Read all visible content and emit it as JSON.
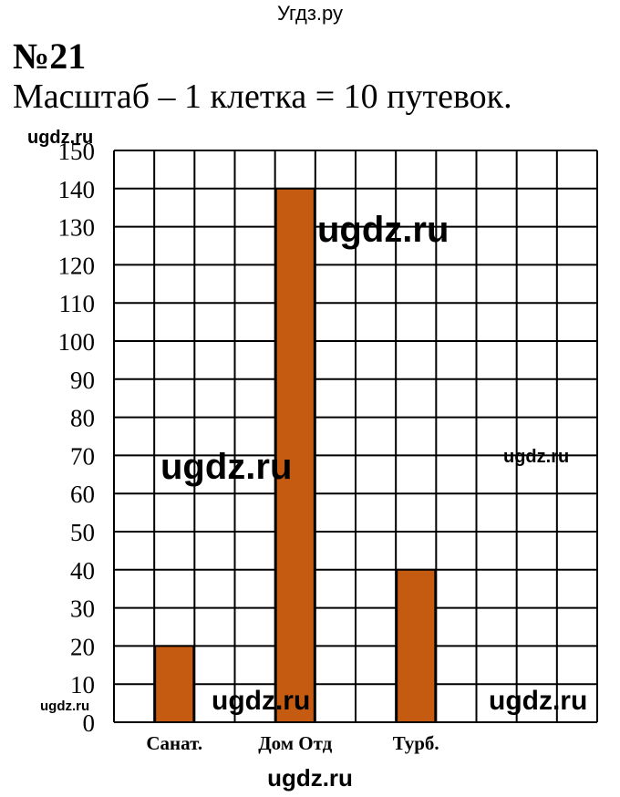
{
  "watermarks": {
    "top": "Угдз.ру",
    "text": "ugdz.ru"
  },
  "problem_number": "№21",
  "scale_text": "Масштаб – 1 клетка = 10 путевок.",
  "colors": {
    "bar": "#c55a11",
    "grid": "#000000"
  },
  "chart_data": {
    "type": "bar",
    "categories": [
      "Санат.",
      "Дом Отд",
      "Турб."
    ],
    "values": [
      20,
      140,
      40
    ],
    "title": "",
    "xlabel": "",
    "ylabel": "",
    "ylim": [
      0,
      150
    ],
    "yticks": [
      0,
      10,
      20,
      30,
      40,
      50,
      60,
      70,
      80,
      90,
      100,
      110,
      120,
      130,
      140,
      150
    ],
    "grid": true
  }
}
